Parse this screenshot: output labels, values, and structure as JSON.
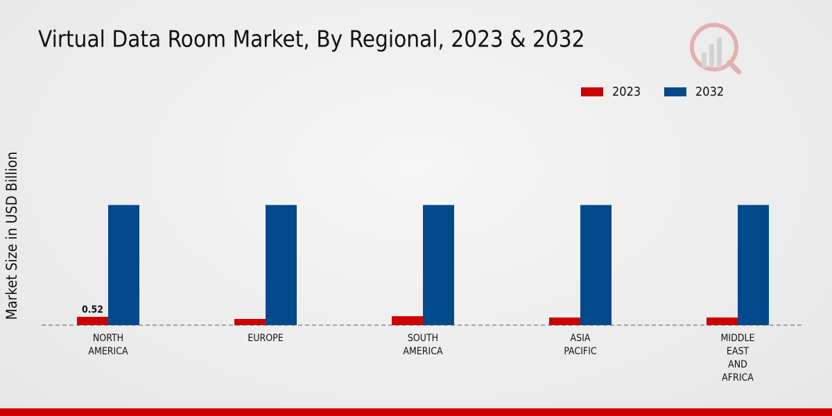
{
  "chart_data": {
    "type": "bar",
    "title": "Virtual Data Room Market, By Regional, 2023 & 2032",
    "y_label": "Market Size in USD Billion",
    "categories": [
      "NORTH AMERICA",
      "EUROPE",
      "SOUTH AMERICA",
      "ASIA PACIFIC",
      "MIDDLE EAST AND AFRICA"
    ],
    "series": [
      {
        "name": "2023",
        "color": "#cc0000",
        "values": [
          0.52,
          0.39,
          0.56,
          0.48,
          0.48
        ]
      },
      {
        "name": "2032",
        "color": "#004a8b",
        "values": [
          7.5,
          7.5,
          7.5,
          7.5,
          7.5
        ]
      }
    ],
    "ylim": [
      0,
      9
    ],
    "data_labels": [
      {
        "series": 0,
        "index": 0
      }
    ]
  }
}
